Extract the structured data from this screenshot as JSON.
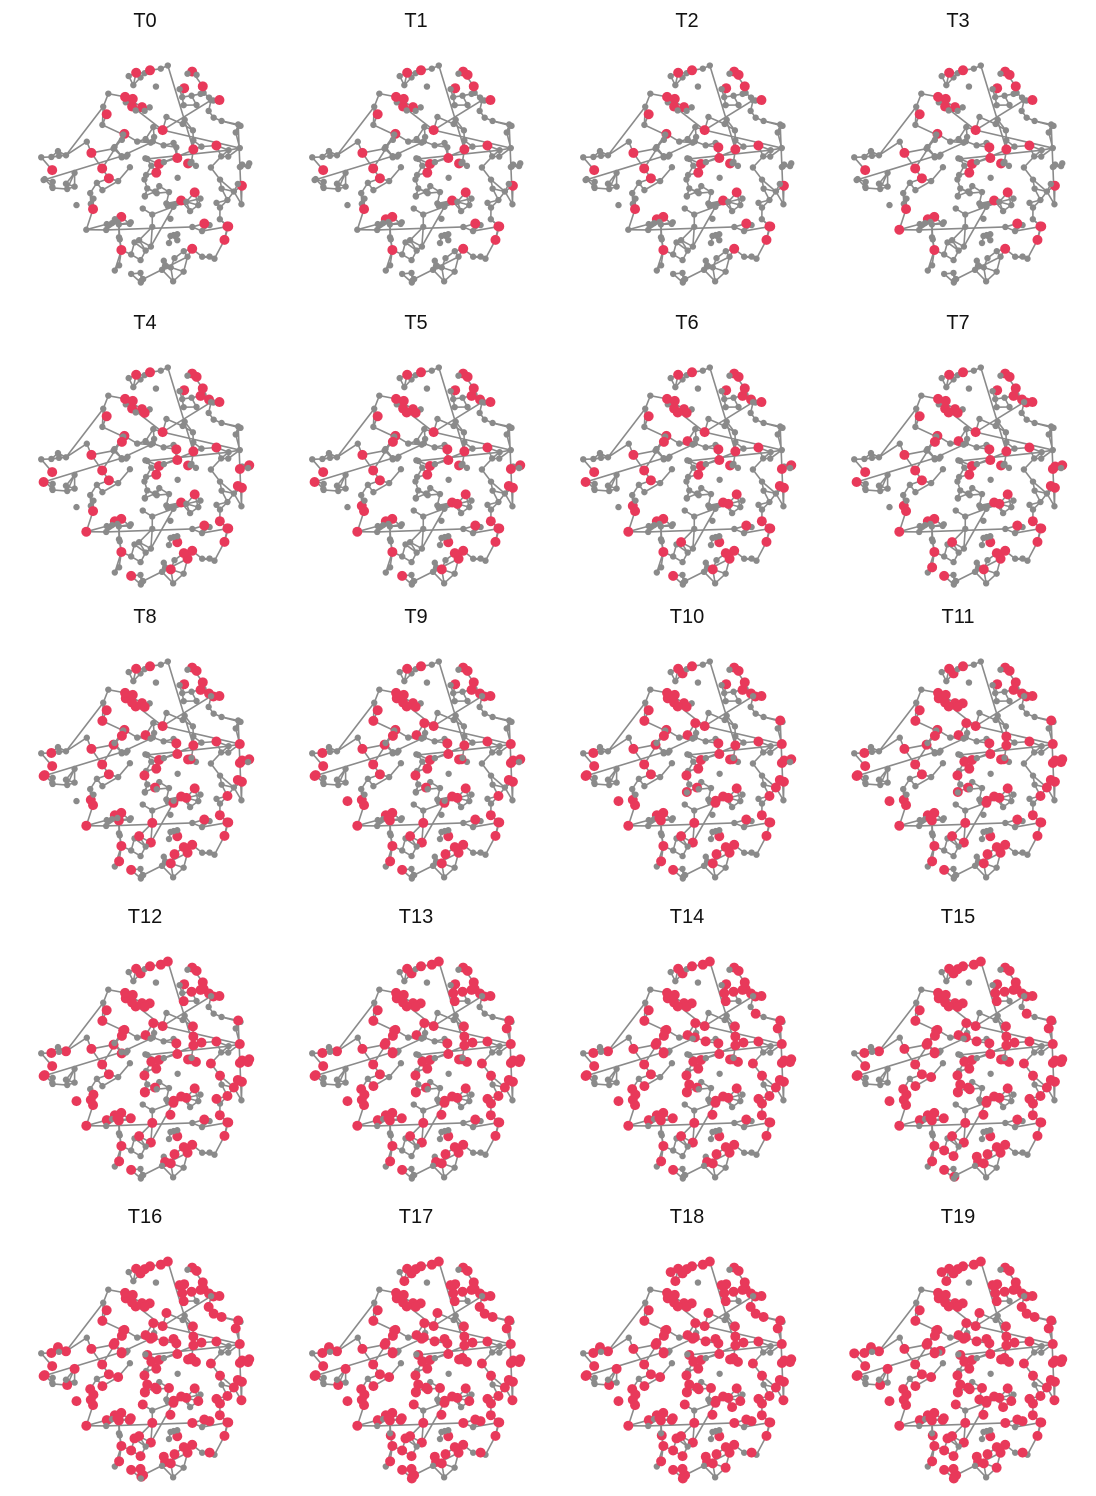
{
  "colors": {
    "edge": "#8a8a8a",
    "inactive_node": "#8a8a8a",
    "active_node": "#e8395a",
    "background": "#ffffff"
  },
  "panels": [
    {
      "title": "T0",
      "active_fraction": 0.22
    },
    {
      "title": "T1",
      "active_fraction": 0.23
    },
    {
      "title": "T2",
      "active_fraction": 0.24
    },
    {
      "title": "T3",
      "active_fraction": 0.26
    },
    {
      "title": "T4",
      "active_fraction": 0.3
    },
    {
      "title": "T5",
      "active_fraction": 0.31
    },
    {
      "title": "T6",
      "active_fraction": 0.32
    },
    {
      "title": "T7",
      "active_fraction": 0.34
    },
    {
      "title": "T8",
      "active_fraction": 0.42
    },
    {
      "title": "T9",
      "active_fraction": 0.44
    },
    {
      "title": "T10",
      "active_fraction": 0.45
    },
    {
      "title": "T11",
      "active_fraction": 0.47
    },
    {
      "title": "T12",
      "active_fraction": 0.58
    },
    {
      "title": "T13",
      "active_fraction": 0.6
    },
    {
      "title": "T14",
      "active_fraction": 0.61
    },
    {
      "title": "T15",
      "active_fraction": 0.63
    },
    {
      "title": "T16",
      "active_fraction": 0.72
    },
    {
      "title": "T17",
      "active_fraction": 0.73
    },
    {
      "title": "T18",
      "active_fraction": 0.74
    },
    {
      "title": "T19",
      "active_fraction": 0.75
    }
  ]
}
